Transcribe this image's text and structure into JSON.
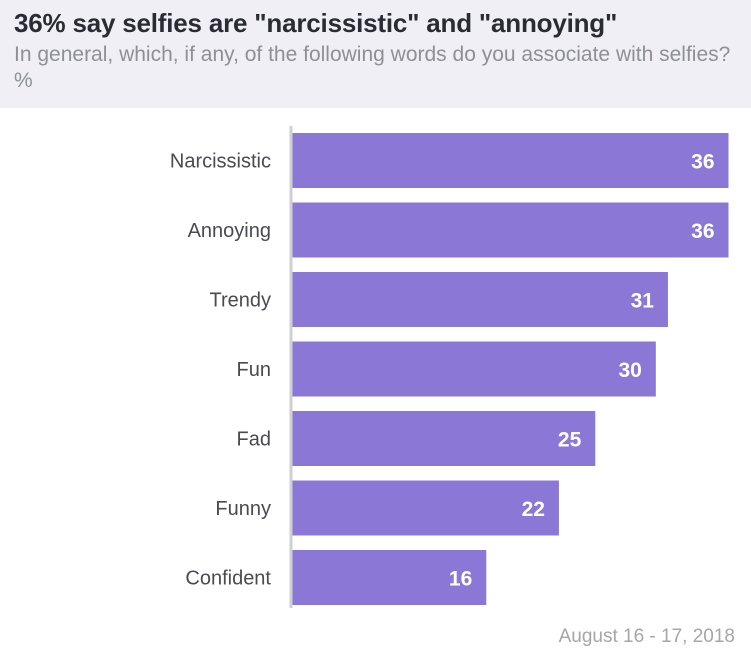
{
  "header": {
    "title": "36% say selfies are \"narcissistic\"  and \"annoying\"",
    "subtitle": "In general, which, if any, of the following words do you associate with selfies? %"
  },
  "footer": {
    "date": "August 16 - 17, 2018"
  },
  "colors": {
    "bar": "#8b78d6",
    "axis": "#cfcfd4",
    "header_bg": "#efeff5"
  },
  "chart_data": {
    "type": "bar",
    "orientation": "horizontal",
    "categories": [
      "Narcissistic",
      "Annoying",
      "Trendy",
      "Fun",
      "Fad",
      "Funny",
      "Confident"
    ],
    "values": [
      36,
      36,
      31,
      30,
      25,
      22,
      16
    ],
    "title": "36% say selfies are \"narcissistic\"  and \"annoying\"",
    "xlim": [
      0,
      36
    ],
    "grid": false,
    "legend": "none"
  }
}
